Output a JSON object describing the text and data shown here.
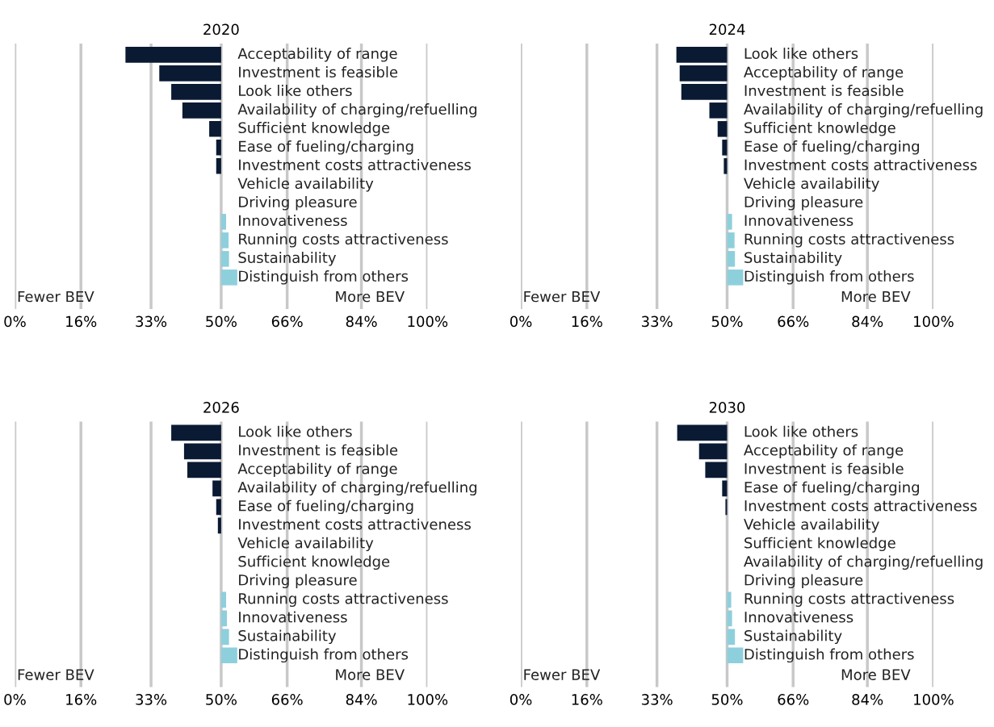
{
  "chart_data": [
    {
      "type": "bar",
      "orientation": "horizontal",
      "title": "2020",
      "tick_labels": "x",
      "grid": "x",
      "legend": false,
      "categories": [
        "Acceptability of range",
        "Investment is feasible",
        "Look like others",
        "Availability of charging/refuelling",
        "Sufficient knowledge",
        "Ease of fueling/charging",
        "Investment costs attractiveness",
        "Vehicle availability",
        "Driving pleasure",
        "Innovativeness",
        "Running costs attractiveness",
        "Sustainability",
        "Distinguish from others"
      ],
      "base": [
        50,
        50,
        50,
        50,
        50,
        50,
        50,
        null,
        null,
        50,
        50,
        50,
        50
      ],
      "values": [
        -23.2,
        -15.0,
        -12.1,
        -9.4,
        -2.9,
        -1.2,
        -1.2,
        null,
        null,
        1.2,
        1.8,
        1.9,
        3.9
      ],
      "colors": [
        "#0a1a33",
        "#0a1a33",
        "#0a1a33",
        "#0a1a33",
        "#0a1a33",
        "#0a1a33",
        "#0a1a33",
        "#0a1a33",
        "#0a1a33",
        "#8ecfdc",
        "#8ecfdc",
        "#8ecfdc",
        "#8ecfdc"
      ],
      "xlim": [
        0,
        100
      ],
      "xticks": [
        {
          "value": 0,
          "label": "0%"
        },
        {
          "value": 16,
          "label": "16%"
        },
        {
          "value": 33,
          "label": "33%"
        },
        {
          "value": 50,
          "label": "50%"
        },
        {
          "value": 66,
          "label": "66%"
        },
        {
          "value": 84,
          "label": "84%"
        },
        {
          "value": 100,
          "label": "100%"
        }
      ],
      "annotations": [
        "Fewer BEV",
        "More BEV"
      ]
    },
    {
      "type": "bar",
      "orientation": "horizontal",
      "title": "2024",
      "tick_labels": "x",
      "grid": "x",
      "legend": false,
      "categories": [
        "Look like others",
        "Acceptability of range",
        "Investment is feasible",
        "Availability of charging/refuelling",
        "Sufficient knowledge",
        "Ease of fueling/charging",
        "Investment costs attractiveness",
        "Vehicle availability",
        "Driving pleasure",
        "Innovativeness",
        "Running costs attractiveness",
        "Sustainability",
        "Distinguish from others"
      ],
      "base": [
        50,
        50,
        50,
        50,
        50,
        50,
        50,
        null,
        null,
        50,
        50,
        50,
        50
      ],
      "values": [
        -12.3,
        -11.5,
        -11.1,
        -4.3,
        -2.3,
        -1.2,
        -0.8,
        null,
        null,
        1.2,
        1.8,
        1.9,
        3.9
      ],
      "colors": [
        "#0a1a33",
        "#0a1a33",
        "#0a1a33",
        "#0a1a33",
        "#0a1a33",
        "#0a1a33",
        "#0a1a33",
        "#0a1a33",
        "#0a1a33",
        "#8ecfdc",
        "#8ecfdc",
        "#8ecfdc",
        "#8ecfdc"
      ],
      "xlim": [
        0,
        100
      ],
      "xticks": [
        {
          "value": 0,
          "label": "0%"
        },
        {
          "value": 16,
          "label": "16%"
        },
        {
          "value": 33,
          "label": "33%"
        },
        {
          "value": 50,
          "label": "50%"
        },
        {
          "value": 66,
          "label": "66%"
        },
        {
          "value": 84,
          "label": "84%"
        },
        {
          "value": 100,
          "label": "100%"
        }
      ],
      "annotations": [
        "Fewer BEV",
        "More BEV"
      ]
    },
    {
      "type": "bar",
      "orientation": "horizontal",
      "title": "2026",
      "tick_labels": "x",
      "grid": "x",
      "legend": false,
      "categories": [
        "Look like others",
        "Investment is feasible",
        "Acceptability of range",
        "Availability of charging/refuelling",
        "Ease of fueling/charging",
        "Investment costs attractiveness",
        "Vehicle availability",
        "Sufficient knowledge",
        "Driving pleasure",
        "Running costs attractiveness",
        "Innovativeness",
        "Sustainability",
        "Distinguish from others"
      ],
      "base": [
        50,
        50,
        50,
        50,
        50,
        50,
        null,
        null,
        null,
        50,
        50,
        50,
        50
      ],
      "values": [
        -12.1,
        -9.0,
        -8.2,
        -2.1,
        -1.2,
        -0.8,
        null,
        null,
        null,
        1.2,
        1.4,
        1.9,
        3.9
      ],
      "colors": [
        "#0a1a33",
        "#0a1a33",
        "#0a1a33",
        "#0a1a33",
        "#0a1a33",
        "#0a1a33",
        "#0a1a33",
        "#0a1a33",
        "#0a1a33",
        "#8ecfdc",
        "#8ecfdc",
        "#8ecfdc",
        "#8ecfdc"
      ],
      "xlim": [
        0,
        100
      ],
      "xticks": [
        {
          "value": 0,
          "label": "0%"
        },
        {
          "value": 16,
          "label": "16%"
        },
        {
          "value": 33,
          "label": "33%"
        },
        {
          "value": 50,
          "label": "50%"
        },
        {
          "value": 66,
          "label": "66%"
        },
        {
          "value": 84,
          "label": "84%"
        },
        {
          "value": 100,
          "label": "100%"
        }
      ],
      "annotations": [
        "Fewer BEV",
        "More BEV"
      ]
    },
    {
      "type": "bar",
      "orientation": "horizontal",
      "title": "2030",
      "tick_labels": "x",
      "grid": "x",
      "legend": false,
      "categories": [
        "Look like others",
        "Acceptability of range",
        "Investment is feasible",
        "Ease of fueling/charging",
        "Investment costs attractiveness",
        "Vehicle availability",
        "Sufficient knowledge",
        "Availability of charging/refuelling",
        "Driving pleasure",
        "Running costs attractiveness",
        "Innovativeness",
        "Sustainability",
        "Distinguish from others"
      ],
      "base": [
        50,
        50,
        50,
        50,
        50,
        null,
        null,
        null,
        null,
        50,
        50,
        50,
        50
      ],
      "values": [
        -12.1,
        -6.8,
        -5.3,
        -1.2,
        -0.4,
        null,
        null,
        null,
        null,
        1.0,
        1.2,
        1.9,
        3.9
      ],
      "colors": [
        "#0a1a33",
        "#0a1a33",
        "#0a1a33",
        "#0a1a33",
        "#0a1a33",
        "#0a1a33",
        "#0a1a33",
        "#0a1a33",
        "#0a1a33",
        "#8ecfdc",
        "#8ecfdc",
        "#8ecfdc",
        "#8ecfdc"
      ],
      "xlim": [
        0,
        100
      ],
      "xticks": [
        {
          "value": 0,
          "label": "0%"
        },
        {
          "value": 16,
          "label": "16%"
        },
        {
          "value": 33,
          "label": "33%"
        },
        {
          "value": 50,
          "label": "50%"
        },
        {
          "value": 66,
          "label": "66%"
        },
        {
          "value": 84,
          "label": "84%"
        },
        {
          "value": 100,
          "label": "100%"
        }
      ],
      "annotations": [
        "Fewer BEV",
        "More BEV"
      ]
    }
  ]
}
